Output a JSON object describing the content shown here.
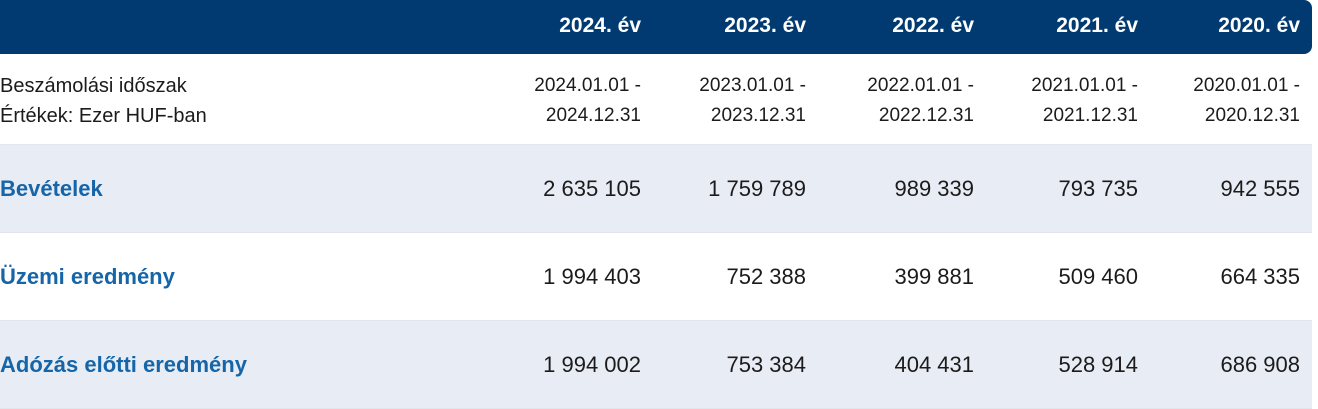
{
  "header": {
    "years": [
      "2024. év",
      "2023. év",
      "2022. év",
      "2021. év",
      "2020. év"
    ]
  },
  "period_row": {
    "label_line1": "Beszámolási időszak",
    "label_line2": "Értékek: Ezer HUF-ban",
    "periods": [
      {
        "start": "2024.01.01 -",
        "end": "2024.12.31"
      },
      {
        "start": "2023.01.01 -",
        "end": "2023.12.31"
      },
      {
        "start": "2022.01.01 -",
        "end": "2022.12.31"
      },
      {
        "start": "2021.01.01 -",
        "end": "2021.12.31"
      },
      {
        "start": "2020.01.01 -",
        "end": "2020.12.31"
      }
    ]
  },
  "rows": [
    {
      "label": "Bevételek",
      "values": [
        "2 635 105",
        "1 759 789",
        "989 339",
        "793 735",
        "942 555"
      ]
    },
    {
      "label": "Üzemi eredmény",
      "values": [
        "1 994 403",
        "752 388",
        "399 881",
        "509 460",
        "664 335"
      ]
    },
    {
      "label": "Adózás előtti eredmény",
      "values": [
        "1 994 002",
        "753 384",
        "404 431",
        "528 914",
        "686 908"
      ]
    }
  ],
  "colors": {
    "header_bg": "#003a70",
    "label_blue": "#1565a8",
    "shaded_row": "#e8ecf4"
  }
}
